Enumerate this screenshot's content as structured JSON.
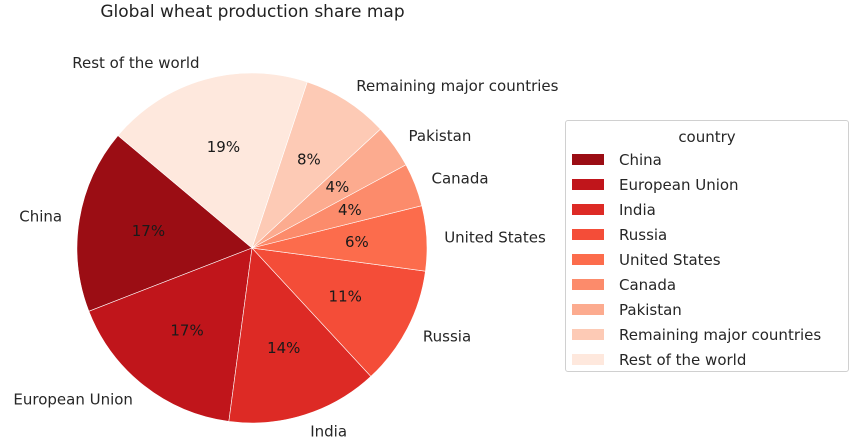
{
  "chart_data": {
    "type": "pie",
    "title": "Global wheat production share map",
    "categories": [
      "China",
      "European Union",
      "India",
      "Russia",
      "United States",
      "Canada",
      "Pakistan",
      "Remaining major countries",
      "Rest of the world"
    ],
    "values": [
      17,
      17,
      14,
      11,
      6,
      4,
      4,
      8,
      19
    ],
    "value_labels": [
      "17%",
      "17%",
      "14%",
      "11%",
      "6%",
      "4%",
      "4%",
      "8%",
      "19%"
    ],
    "colors": [
      "#9b0d14",
      "#c0151b",
      "#dd2a25",
      "#f44d38",
      "#fc6c4c",
      "#fc8b6b",
      "#fcab8f",
      "#fdcab5",
      "#fee8dd"
    ],
    "start_angle": 140,
    "counterclock": true,
    "legend": {
      "title": "country",
      "position": "right",
      "entries": [
        "China",
        "European Union",
        "India",
        "Russia",
        "United States",
        "Canada",
        "Pakistan",
        "Remaining major countries",
        "Rest of the world"
      ]
    },
    "xlabel": "",
    "ylabel": ""
  }
}
